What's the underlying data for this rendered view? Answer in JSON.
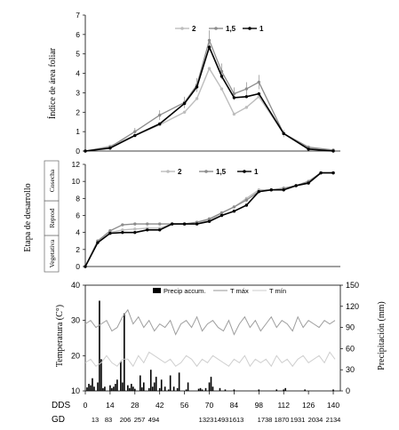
{
  "colors": {
    "s2": "#bdbdbd",
    "s15": "#8c8c8c",
    "s1": "#000000",
    "tmax": "#9e9e9e",
    "tmin": "#cfcfcf",
    "precip": "#000000"
  },
  "bottom_axis": {
    "dds_label": "DDS",
    "gd_label": "GD",
    "dds_ticks": [
      "0",
      "14",
      "28",
      "42",
      "56",
      "70",
      "84",
      "98",
      "112",
      "126",
      "140"
    ],
    "gd_values": [
      "13",
      "83",
      "206",
      "257",
      "494",
      "1323",
      "1493",
      "1613",
      "1738",
      "1870",
      "1931",
      "2034",
      "2134"
    ]
  },
  "chart_data": [
    {
      "type": "line",
      "ylabel": "Índice de área foliar",
      "ylim": [
        0,
        7
      ],
      "yticks": [
        "0",
        "1",
        "2",
        "3",
        "4",
        "5",
        "6",
        "7"
      ],
      "xlim": [
        0,
        144
      ],
      "x": [
        0,
        14,
        28,
        42,
        56,
        63,
        70,
        77,
        84,
        91,
        98,
        112,
        126,
        140
      ],
      "legend_position": "top-center",
      "series": [
        {
          "name": "2",
          "values": [
            0,
            0.25,
            0.8,
            1.35,
            2.0,
            2.7,
            4.25,
            3.2,
            1.9,
            2.25,
            2.8,
            0.9,
            0.15,
            0.05
          ]
        },
        {
          "name": "1,5",
          "values": [
            0,
            0.2,
            1.0,
            1.85,
            2.5,
            3.4,
            5.7,
            4.1,
            2.95,
            3.2,
            3.55,
            0.9,
            0.2,
            0.05
          ]
        },
        {
          "name": "1",
          "values": [
            0,
            0.15,
            0.8,
            1.4,
            2.45,
            3.3,
            5.35,
            3.85,
            2.75,
            2.8,
            2.95,
            0.9,
            0.1,
            0.0
          ]
        }
      ]
    },
    {
      "type": "line",
      "ylabel": "Etapa de desarrollo",
      "ylim": [
        0,
        12
      ],
      "yticks": [
        "0",
        "2",
        "4",
        "6",
        "8",
        "10",
        "12"
      ],
      "stage_labels": [
        "Vegetativa",
        "Reprod",
        "Cosecha"
      ],
      "xlim": [
        0,
        144
      ],
      "x": [
        0,
        7,
        14,
        21,
        28,
        35,
        42,
        49,
        56,
        63,
        70,
        77,
        84,
        91,
        98,
        105,
        112,
        119,
        126,
        133,
        140
      ],
      "legend_position": "top-center",
      "series": [
        {
          "name": "2",
          "values": [
            0,
            3.0,
            4.0,
            4.3,
            4.4,
            4.5,
            4.5,
            5.0,
            5.0,
            5.2,
            5.4,
            6.3,
            7.0,
            8.0,
            9.0,
            9.0,
            9.2,
            9.5,
            10.0,
            11.0,
            11.0
          ]
        },
        {
          "name": "1,5",
          "values": [
            0,
            3.0,
            4.2,
            4.9,
            5.0,
            5.0,
            5.0,
            5.0,
            5.0,
            5.2,
            5.6,
            6.3,
            7.0,
            7.8,
            8.8,
            9.0,
            9.2,
            9.5,
            10.0,
            11.0,
            11.0
          ]
        },
        {
          "name": "1",
          "values": [
            0,
            2.8,
            3.9,
            4.0,
            4.0,
            4.3,
            4.3,
            5.0,
            5.0,
            5.0,
            5.3,
            6.0,
            6.5,
            7.2,
            8.8,
            9.0,
            9.0,
            9.5,
            9.8,
            11.0,
            11.0
          ]
        }
      ]
    },
    {
      "type": "line",
      "ylabel": "Temperatura (C°)",
      "y2label": "Precipitación (mm)",
      "ylim": [
        10,
        40
      ],
      "yticks": [
        "10",
        "20",
        "30",
        "40"
      ],
      "y2lim": [
        0,
        150
      ],
      "y2ticks": [
        "0",
        "30",
        "60",
        "90",
        "120",
        "150"
      ],
      "xlim": [
        0,
        144
      ],
      "legend_position": "top-center",
      "series": [
        {
          "name": "Precip accum.",
          "type": "bar",
          "x": [
            1,
            2,
            3,
            4,
            5,
            7,
            8,
            9,
            10,
            11,
            14,
            15,
            16,
            17,
            18,
            20,
            21,
            22,
            24,
            25,
            26,
            27,
            28,
            31,
            32,
            33,
            36,
            37,
            38,
            39,
            40,
            42,
            43,
            45,
            47,
            48,
            50,
            52,
            53,
            57,
            58,
            64,
            65,
            66,
            68,
            70,
            71,
            72,
            76,
            79,
            84,
            98,
            108,
            112,
            113,
            124,
            140
          ],
          "values": [
            5,
            10,
            8,
            18,
            6,
            12,
            128,
            45,
            4,
            6,
            8,
            4,
            6,
            10,
            16,
            42,
            12,
            110,
            8,
            4,
            10,
            6,
            3,
            22,
            5,
            12,
            4,
            30,
            6,
            12,
            20,
            4,
            16,
            6,
            2,
            22,
            6,
            4,
            26,
            2,
            12,
            3,
            4,
            2,
            4,
            12,
            20,
            6,
            4,
            2,
            2,
            2,
            2,
            2,
            4,
            2,
            2
          ]
        },
        {
          "name": "T máx",
          "x": [
            0,
            3,
            6,
            9,
            12,
            15,
            18,
            21,
            24,
            27,
            30,
            33,
            36,
            39,
            42,
            45,
            48,
            51,
            54,
            57,
            60,
            63,
            66,
            69,
            72,
            75,
            78,
            81,
            84,
            87,
            90,
            93,
            96,
            99,
            102,
            105,
            108,
            111,
            114,
            117,
            120,
            123,
            126,
            129,
            132,
            135,
            138,
            141
          ],
          "values": [
            29,
            30,
            28,
            29,
            30,
            27,
            28,
            31,
            33,
            29,
            31,
            28,
            30,
            27,
            29,
            28,
            30,
            26,
            29,
            30,
            28,
            31,
            27,
            29,
            30,
            28,
            27,
            30,
            26,
            29,
            31,
            28,
            30,
            27,
            29,
            31,
            28,
            30,
            29,
            27,
            31,
            28,
            30,
            29,
            28,
            30,
            29,
            30
          ]
        },
        {
          "name": "T mín",
          "x": [
            0,
            3,
            6,
            9,
            12,
            15,
            18,
            21,
            24,
            27,
            30,
            33,
            36,
            39,
            42,
            45,
            48,
            51,
            54,
            57,
            60,
            63,
            66,
            69,
            72,
            75,
            78,
            81,
            84,
            87,
            90,
            93,
            96,
            99,
            102,
            105,
            108,
            111,
            114,
            117,
            120,
            123,
            126,
            129,
            132,
            135,
            138,
            141
          ],
          "values": [
            18,
            19,
            17,
            18,
            20,
            18,
            17,
            19,
            19,
            17,
            20,
            18,
            21,
            20,
            19,
            18,
            19,
            17,
            18,
            20,
            19,
            17,
            19,
            18,
            20,
            19,
            18,
            17,
            19,
            18,
            20,
            17,
            19,
            18,
            19,
            17,
            20,
            18,
            19,
            17,
            19,
            20,
            18,
            19,
            20,
            18,
            21,
            19
          ]
        }
      ]
    }
  ]
}
